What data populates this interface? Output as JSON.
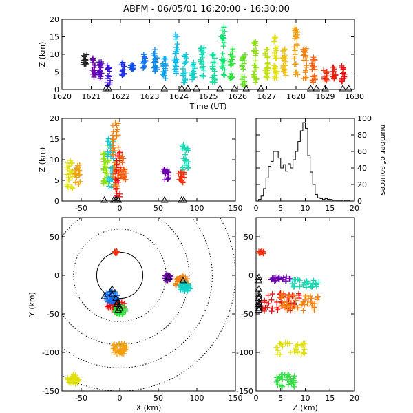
{
  "title": "ABFM - 06/05/01 16:20:00 - 16:30:00",
  "chart_data": [
    {
      "id": "time_height",
      "type": "scatter",
      "xlabel": "Time (UT)",
      "ylabel": "Z (km)",
      "xlim": [
        1620,
        1630
      ],
      "ylim": [
        0,
        20
      ],
      "xticks": [
        1620,
        1621,
        1622,
        1623,
        1624,
        1625,
        1626,
        1627,
        1628,
        1629,
        1630
      ],
      "yticks": [
        0,
        5,
        10,
        15,
        20
      ],
      "stations_x": [
        1621.5,
        1621.6,
        1623.5,
        1624.1,
        1624.3,
        1624.6,
        1625.4,
        1625.9,
        1626.3,
        1626.8,
        1628.5,
        1628.7,
        1629.0,
        1629.6,
        1629.8
      ],
      "columns": [
        {
          "t": 1620.8,
          "zmin": 7,
          "zmax": 10,
          "color": "#222222"
        },
        {
          "t": 1621.1,
          "zmin": 3,
          "zmax": 9,
          "color": "#6a00a8"
        },
        {
          "t": 1621.3,
          "zmin": 3,
          "zmax": 8,
          "color": "#5a00c8"
        },
        {
          "t": 1621.6,
          "zmin": 1,
          "zmax": 7,
          "color": "#3a10d0"
        },
        {
          "t": 1622.1,
          "zmin": 4,
          "zmax": 8,
          "color": "#2030e0"
        },
        {
          "t": 1622.4,
          "zmin": 5,
          "zmax": 7,
          "color": "#1050e8"
        },
        {
          "t": 1622.8,
          "zmin": 6,
          "zmax": 10,
          "color": "#1070f0"
        },
        {
          "t": 1623.2,
          "zmin": 5,
          "zmax": 12,
          "color": "#0a8af0"
        },
        {
          "t": 1623.5,
          "zmin": 3,
          "zmax": 9,
          "color": "#0aa0f0"
        },
        {
          "t": 1623.9,
          "zmin": 4,
          "zmax": 16,
          "color": "#0cb8e8"
        },
        {
          "t": 1624.2,
          "zmin": 2,
          "zmax": 10,
          "color": "#10c8d8"
        },
        {
          "t": 1624.5,
          "zmin": 2,
          "zmax": 8,
          "color": "#10d0c8"
        },
        {
          "t": 1624.8,
          "zmin": 3,
          "zmax": 14,
          "color": "#14d8b0"
        },
        {
          "t": 1625.2,
          "zmin": 2,
          "zmax": 10,
          "color": "#10e098"
        },
        {
          "t": 1625.5,
          "zmin": 4,
          "zmax": 18,
          "color": "#10e070"
        },
        {
          "t": 1625.8,
          "zmin": 2,
          "zmax": 12,
          "color": "#30e040"
        },
        {
          "t": 1626.2,
          "zmin": 1,
          "zmax": 10,
          "color": "#60e020"
        },
        {
          "t": 1626.6,
          "zmin": 2,
          "zmax": 14,
          "color": "#90e010"
        },
        {
          "t": 1627.0,
          "zmin": 2,
          "zmax": 12,
          "color": "#c0e010"
        },
        {
          "t": 1627.3,
          "zmin": 3,
          "zmax": 15,
          "color": "#e0e010"
        },
        {
          "t": 1627.6,
          "zmin": 4,
          "zmax": 12,
          "color": "#f0c010"
        },
        {
          "t": 1628.0,
          "zmin": 4,
          "zmax": 18,
          "color": "#f0a010"
        },
        {
          "t": 1628.3,
          "zmin": 3,
          "zmax": 12,
          "color": "#f08010"
        },
        {
          "t": 1628.6,
          "zmin": 2,
          "zmax": 10,
          "color": "#f06010"
        },
        {
          "t": 1629.0,
          "zmin": 2,
          "zmax": 6,
          "color": "#f03010"
        },
        {
          "t": 1629.3,
          "zmin": 3,
          "zmax": 7,
          "color": "#e82010"
        },
        {
          "t": 1629.6,
          "zmin": 2,
          "zmax": 7,
          "color": "#e81010"
        }
      ]
    },
    {
      "id": "x_height",
      "type": "scatter",
      "ylabel": "Z (km)",
      "xlim": [
        -75,
        150
      ],
      "ylim": [
        0,
        20
      ],
      "xticks": [
        -50,
        0,
        50,
        100,
        150
      ],
      "yticks": [
        0,
        5,
        10,
        15,
        20
      ],
      "stations_x": [
        -20,
        -8,
        -6,
        -4,
        -2,
        58,
        80,
        83
      ],
      "clusters": [
        {
          "x": -65,
          "zmin": 3,
          "zmax": 10,
          "color": "#e0e010"
        },
        {
          "x": -55,
          "zmin": 4,
          "zmax": 9,
          "color": "#f0a010"
        },
        {
          "x": -18,
          "zmin": 4,
          "zmax": 14,
          "color": "#90e010"
        },
        {
          "x": -12,
          "zmin": 3,
          "zmax": 16,
          "color": "#10c8d8"
        },
        {
          "x": -6,
          "zmin": 3,
          "zmax": 19,
          "color": "#f08010"
        },
        {
          "x": -2,
          "zmin": 1,
          "zmax": 12,
          "color": "#e81010"
        },
        {
          "x": 4,
          "zmin": 5,
          "zmax": 11,
          "color": "#f06010"
        },
        {
          "x": 60,
          "zmin": 5,
          "zmax": 8,
          "color": "#6a00a8"
        },
        {
          "x": 80,
          "zmin": 4,
          "zmax": 7,
          "color": "#f03010"
        },
        {
          "x": 85,
          "zmin": 7,
          "zmax": 14,
          "color": "#14d8b0"
        }
      ]
    },
    {
      "id": "histogram",
      "type": "bar",
      "xlim": [
        0,
        20
      ],
      "ylim": [
        0,
        100
      ],
      "xticks": [
        0,
        5,
        10,
        15,
        20
      ],
      "yticks": [
        0,
        20,
        40,
        60,
        80,
        100
      ],
      "ylabel_right": "number of sources",
      "bins": [
        0,
        0.5,
        1,
        1.5,
        2,
        2.5,
        3,
        3.5,
        4,
        4.5,
        5,
        5.5,
        6,
        6.5,
        7,
        7.5,
        8,
        8.5,
        9,
        9.5,
        10,
        10.5,
        11,
        11.5,
        12,
        12.5,
        13,
        13.5,
        14,
        14.5,
        15,
        15.5,
        16,
        16.5,
        17,
        17.5,
        18,
        18.5,
        19,
        19.5
      ],
      "counts": [
        0,
        2,
        6,
        15,
        28,
        42,
        48,
        60,
        60,
        52,
        40,
        44,
        36,
        45,
        40,
        50,
        60,
        72,
        85,
        95,
        88,
        55,
        35,
        20,
        8,
        4,
        3,
        2,
        3,
        2,
        2,
        1,
        1,
        1,
        1,
        0,
        1,
        1,
        0,
        0
      ]
    },
    {
      "id": "plan_view",
      "type": "scatter",
      "xlabel": "X (km)",
      "ylabel": "Y (km)",
      "xlim": [
        -75,
        150
      ],
      "ylim": [
        -150,
        75
      ],
      "xticks": [
        -50,
        0,
        50,
        100,
        150
      ],
      "yticks": [
        -150,
        -100,
        -50,
        0,
        50
      ],
      "ring_radii_km": [
        30,
        60,
        90,
        120,
        150
      ],
      "stations": [
        [
          -20,
          -28
        ],
        [
          -10,
          -25
        ],
        [
          -5,
          -30
        ],
        [
          -3,
          -35
        ],
        [
          -1,
          -40
        ],
        [
          -2,
          -45
        ],
        [
          0,
          -43
        ],
        [
          -4,
          -38
        ],
        [
          63,
          -3
        ],
        [
          82,
          -7
        ],
        [
          -10,
          -18
        ]
      ],
      "clusters": [
        {
          "x": -60,
          "y": -135,
          "r": 8,
          "color": "#e0e010"
        },
        {
          "x": -5,
          "y": -38,
          "r": 12,
          "color": "#e81010"
        },
        {
          "x": -10,
          "y": -28,
          "r": 10,
          "color": "#1070f0"
        },
        {
          "x": 0,
          "y": -45,
          "r": 8,
          "color": "#30e040"
        },
        {
          "x": 0,
          "y": -95,
          "r": 10,
          "color": "#f0a010"
        },
        {
          "x": -5,
          "y": 30,
          "r": 2,
          "color": "#f03010"
        },
        {
          "x": 62,
          "y": -3,
          "r": 5,
          "color": "#6a00a8"
        },
        {
          "x": 80,
          "y": -8,
          "r": 10,
          "color": "#f08010"
        },
        {
          "x": 85,
          "y": -15,
          "r": 8,
          "color": "#10d0c8"
        }
      ]
    },
    {
      "id": "z_y",
      "type": "scatter",
      "xlabel": "Z (km)",
      "xlim": [
        0,
        20
      ],
      "ylim": [
        -150,
        75
      ],
      "xticks": [
        0,
        5,
        10,
        15,
        20
      ],
      "yticks": [
        -150,
        -100,
        -50,
        0,
        50
      ],
      "stations_y": [
        -28,
        -25,
        -30,
        -35,
        -40,
        -45,
        -43,
        -38,
        -3,
        -7,
        -18
      ],
      "clusters": [
        {
          "z": 5,
          "y": -35,
          "rz": 4,
          "ry": 12,
          "color": "#e81010"
        },
        {
          "z": 9,
          "y": -35,
          "rz": 4,
          "ry": 12,
          "color": "#f08010"
        },
        {
          "z": 10,
          "y": -10,
          "rz": 3,
          "ry": 6,
          "color": "#14d8b0"
        },
        {
          "z": 5,
          "y": -5,
          "rz": 2,
          "ry": 3,
          "color": "#6a00a8"
        },
        {
          "z": 7,
          "y": -95,
          "rz": 3,
          "ry": 8,
          "color": "#e0e010"
        },
        {
          "z": 6,
          "y": -135,
          "rz": 2,
          "ry": 10,
          "color": "#30e040"
        },
        {
          "z": 1,
          "y": 30,
          "rz": 0.5,
          "ry": 2,
          "color": "#f03010"
        }
      ]
    }
  ]
}
